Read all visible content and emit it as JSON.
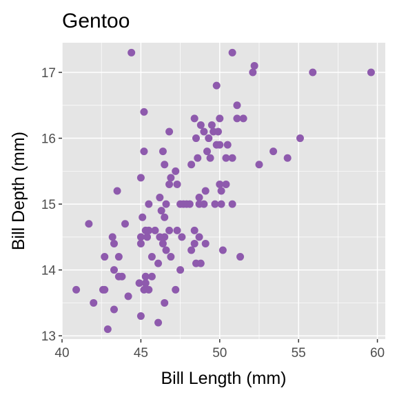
{
  "chart_data": {
    "type": "scatter",
    "title": "Gentoo",
    "xlabel": "Bill Length (mm)",
    "ylabel": "Bill Depth (mm)",
    "xlim": [
      40,
      60.5
    ],
    "ylim": [
      12.95,
      17.45
    ],
    "x_ticks": [
      40,
      45,
      50,
      55,
      60
    ],
    "y_ticks": [
      13,
      14,
      15,
      16,
      17
    ],
    "grid": true,
    "legend": "none",
    "point_color": "#8E5AAD",
    "panel_color": "#E5E5E5",
    "grid_color": "#FFFFFF",
    "series": [
      {
        "points": [
          [
            44.4,
            17.3
          ],
          [
            50.8,
            17.3
          ],
          [
            52.2,
            17.1
          ],
          [
            52.1,
            17.0
          ],
          [
            55.9,
            17.0
          ],
          [
            59.6,
            17.0
          ],
          [
            49.8,
            16.8
          ],
          [
            51.1,
            16.5
          ],
          [
            45.2,
            16.4
          ],
          [
            48.4,
            16.3
          ],
          [
            50.0,
            16.3
          ],
          [
            51.1,
            16.3
          ],
          [
            51.5,
            16.3
          ],
          [
            48.8,
            16.2
          ],
          [
            49.5,
            16.2
          ],
          [
            49.0,
            16.1
          ],
          [
            49.6,
            16.1
          ],
          [
            49.9,
            16.1
          ],
          [
            46.8,
            16.1
          ],
          [
            49.3,
            16.0
          ],
          [
            55.1,
            16.0
          ],
          [
            48.5,
            16.0
          ],
          [
            49.8,
            15.9
          ],
          [
            50.0,
            15.9
          ],
          [
            50.5,
            15.9
          ],
          [
            49.2,
            15.8
          ],
          [
            45.2,
            15.8
          ],
          [
            46.4,
            15.8
          ],
          [
            53.4,
            15.8
          ],
          [
            48.6,
            15.7
          ],
          [
            49.4,
            15.7
          ],
          [
            50.4,
            15.7
          ],
          [
            50.8,
            15.7
          ],
          [
            54.3,
            15.7
          ],
          [
            46.5,
            15.6
          ],
          [
            48.2,
            15.6
          ],
          [
            52.5,
            15.6
          ],
          [
            47.2,
            15.5
          ],
          [
            46.9,
            15.4
          ],
          [
            45.0,
            15.4
          ],
          [
            46.8,
            15.3
          ],
          [
            47.3,
            15.3
          ],
          [
            50.0,
            15.3
          ],
          [
            50.4,
            15.3
          ],
          [
            43.5,
            15.2
          ],
          [
            49.1,
            15.2
          ],
          [
            50.1,
            15.2
          ],
          [
            46.2,
            15.1
          ],
          [
            48.7,
            15.1
          ],
          [
            46.6,
            15.0
          ],
          [
            47.5,
            15.0
          ],
          [
            47.7,
            15.0
          ],
          [
            47.9,
            15.0
          ],
          [
            48.1,
            15.0
          ],
          [
            48.7,
            15.0
          ],
          [
            49.0,
            15.0
          ],
          [
            49.7,
            15.0
          ],
          [
            50.1,
            15.0
          ],
          [
            50.8,
            15.0
          ],
          [
            45.5,
            15.0
          ],
          [
            46.3,
            14.9
          ],
          [
            45.1,
            14.8
          ],
          [
            46.5,
            14.8
          ],
          [
            41.7,
            14.7
          ],
          [
            44.0,
            14.7
          ],
          [
            45.3,
            14.6
          ],
          [
            45.5,
            14.6
          ],
          [
            45.9,
            14.6
          ],
          [
            46.8,
            14.6
          ],
          [
            47.3,
            14.6
          ],
          [
            48.4,
            14.6
          ],
          [
            43.2,
            14.5
          ],
          [
            45.0,
            14.5
          ],
          [
            45.4,
            14.5
          ],
          [
            46.2,
            14.5
          ],
          [
            46.5,
            14.5
          ],
          [
            47.6,
            14.5
          ],
          [
            48.7,
            14.5
          ],
          [
            43.3,
            14.4
          ],
          [
            45.0,
            14.4
          ],
          [
            46.4,
            14.4
          ],
          [
            48.4,
            14.4
          ],
          [
            49.1,
            14.4
          ],
          [
            46.6,
            14.3
          ],
          [
            50.2,
            14.3
          ],
          [
            48.2,
            14.3
          ],
          [
            42.7,
            14.2
          ],
          [
            43.6,
            14.2
          ],
          [
            45.7,
            14.2
          ],
          [
            46.9,
            14.2
          ],
          [
            51.3,
            14.2
          ],
          [
            46.1,
            14.1
          ],
          [
            48.5,
            14.1
          ],
          [
            48.8,
            14.1
          ],
          [
            47.5,
            14.0
          ],
          [
            43.3,
            14.0
          ],
          [
            43.6,
            13.9
          ],
          [
            43.8,
            13.9
          ],
          [
            45.3,
            13.9
          ],
          [
            45.7,
            13.9
          ],
          [
            44.9,
            13.8
          ],
          [
            45.3,
            13.8
          ],
          [
            40.9,
            13.7
          ],
          [
            42.6,
            13.7
          ],
          [
            42.7,
            13.7
          ],
          [
            45.2,
            13.7
          ],
          [
            45.5,
            13.7
          ],
          [
            47.2,
            13.7
          ],
          [
            44.2,
            13.6
          ],
          [
            42.0,
            13.5
          ],
          [
            46.5,
            13.5
          ],
          [
            43.3,
            13.4
          ],
          [
            45.0,
            13.3
          ],
          [
            46.1,
            13.2
          ],
          [
            42.9,
            13.1
          ]
        ]
      }
    ]
  }
}
